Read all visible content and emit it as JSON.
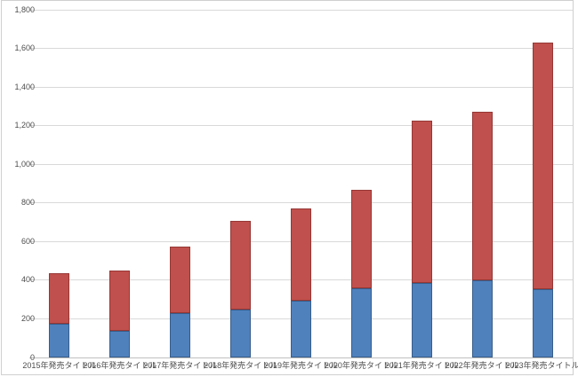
{
  "chart_data": {
    "type": "bar",
    "stacked": true,
    "title": "",
    "xlabel": "",
    "ylabel": "",
    "categories": [
      "2015年発売タイトル",
      "2016年発売タイトル",
      "2017年発売タイトル",
      "2018年発売タイトル",
      "2019年発売タイトル",
      "2020年発売タイトル",
      "2021年発売タイトル",
      "2022年発売タイトル",
      "2023年発売タイトル"
    ],
    "series": [
      {
        "name": "blue-bottom-segment",
        "color": "#4F81BD",
        "border_color": "#385D8A",
        "values": [
          175,
          140,
          230,
          250,
          295,
          360,
          385,
          400,
          355
        ]
      },
      {
        "name": "red-top-segment",
        "color": "#C0504D",
        "border_color": "#953735",
        "values": [
          260,
          310,
          345,
          455,
          475,
          510,
          840,
          870,
          1275
        ]
      }
    ],
    "stack_totals": [
      435,
      450,
      575,
      705,
      770,
      870,
      1225,
      1270,
      1630
    ],
    "ylim": [
      0,
      1800
    ],
    "y_tick_step": 200,
    "y_tick_labels": [
      "0",
      "200",
      "400",
      "600",
      "800",
      "1,000",
      "1,200",
      "1,400",
      "1,600",
      "1,800"
    ],
    "grid": true,
    "legend": "none"
  },
  "style": {
    "gridline_color": "#D9D9D9",
    "axis_line_color": "#C0C0C0",
    "tick_label_color": "#4D4D4D",
    "frame_border_color": "#D1CFCF",
    "background_color": "#FFFFFF"
  }
}
